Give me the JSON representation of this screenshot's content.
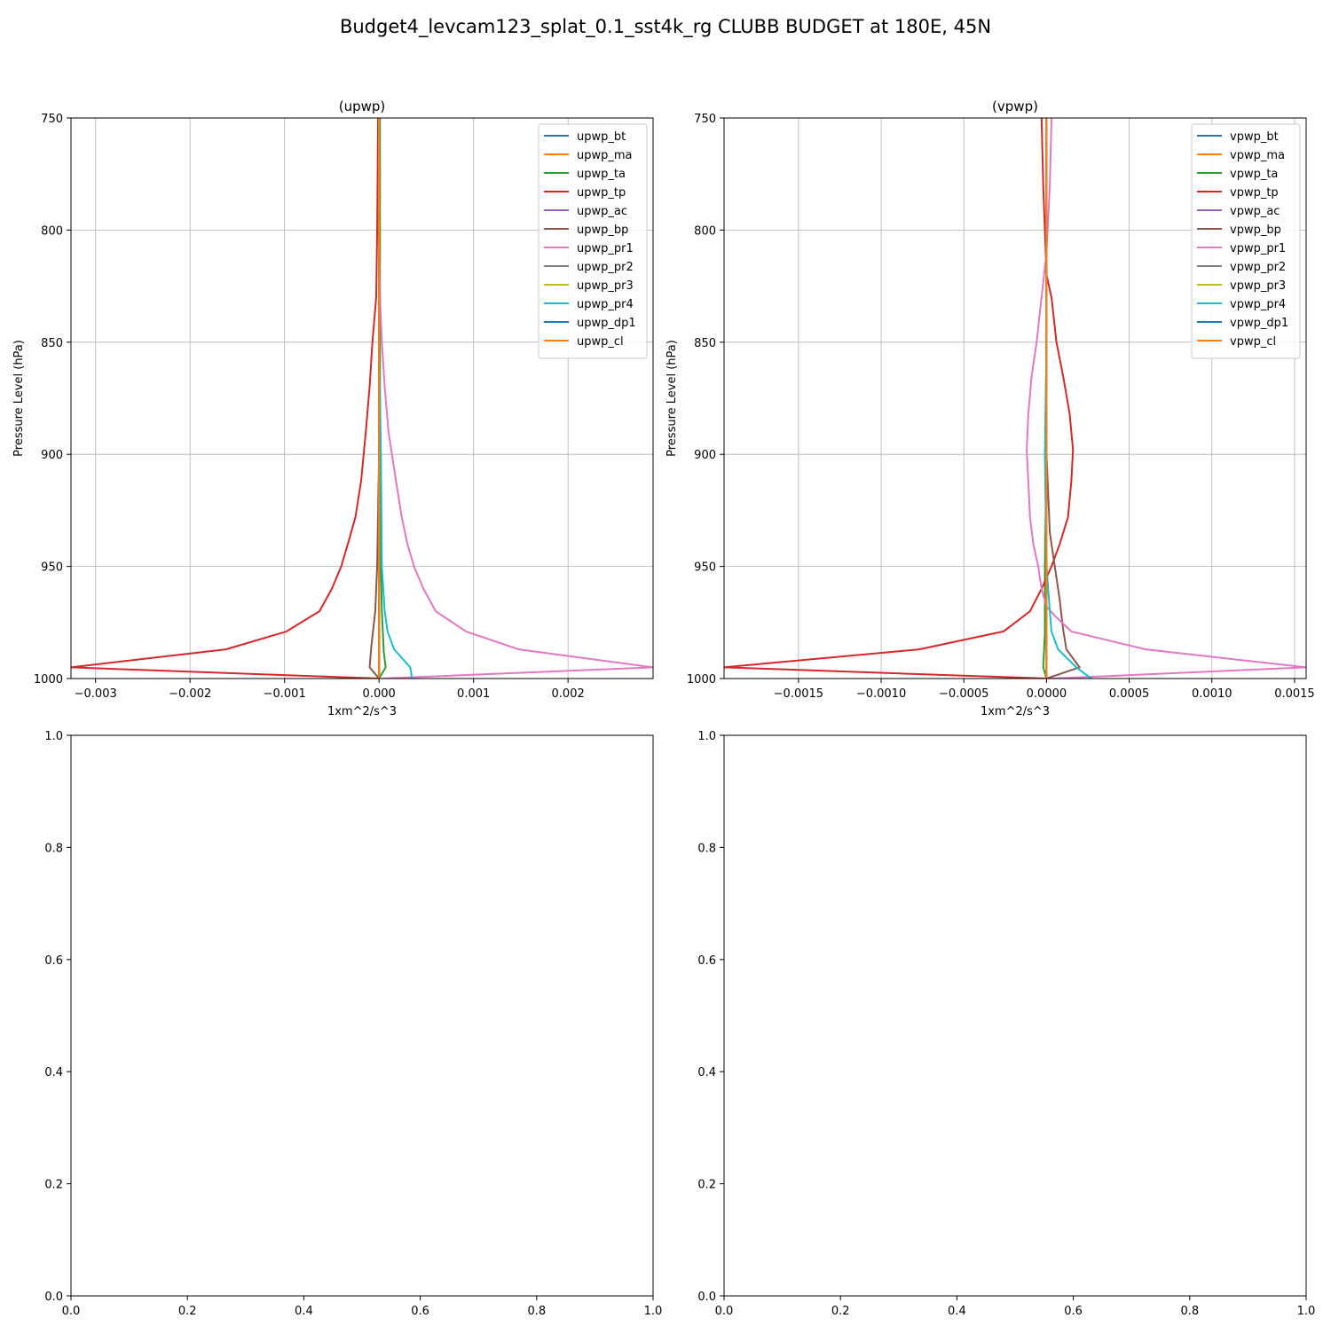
{
  "figure": {
    "suptitle": "Budget4_levcam123_splat_0.1_sst4k_rg CLUBB BUDGET at 180E, 45N"
  },
  "chart_data": [
    {
      "type": "line",
      "orientation": "vertical-profile",
      "title": "(upwp)",
      "xlabel": "1xm^2/s^3",
      "ylabel": "Pressure Level (hPa)",
      "xlim": [
        -0.00326,
        0.0029
      ],
      "ylim": [
        1000,
        750
      ],
      "y_inverted": true,
      "xticks": [
        {
          "value": -0.003,
          "label": "−0.003"
        },
        {
          "value": -0.002,
          "label": "−0.002"
        },
        {
          "value": -0.001,
          "label": "−0.001"
        },
        {
          "value": 0.0,
          "label": "0.000"
        },
        {
          "value": 0.001,
          "label": "0.001"
        },
        {
          "value": 0.002,
          "label": "0.002"
        }
      ],
      "yticks": [
        {
          "value": 750,
          "label": "750"
        },
        {
          "value": 800,
          "label": "800"
        },
        {
          "value": 850,
          "label": "850"
        },
        {
          "value": 900,
          "label": "900"
        },
        {
          "value": 950,
          "label": "950"
        },
        {
          "value": 1000,
          "label": "1000"
        }
      ],
      "grid": true,
      "legend_position": "top-right",
      "series": [
        {
          "name": "upwp_bt",
          "color": "#1f77b4",
          "points": [
            [
              0.0,
              750
            ],
            [
              0.0,
              1000
            ]
          ]
        },
        {
          "name": "upwp_ma",
          "color": "#ff7f0e",
          "points": [
            [
              0.0,
              750
            ],
            [
              0.0,
              1000
            ]
          ]
        },
        {
          "name": "upwp_ta",
          "color": "#2ca02c",
          "points": [
            [
              1e-05,
              750
            ],
            [
              1e-05,
              900
            ],
            [
              2e-05,
              950
            ],
            [
              3e-05,
              970
            ],
            [
              5e-05,
              988
            ],
            [
              7e-05,
              995
            ],
            [
              0.0,
              1000
            ]
          ]
        },
        {
          "name": "upwp_tp",
          "color": "#d62728",
          "points": [
            [
              -1e-05,
              750
            ],
            [
              -2e-05,
              800
            ],
            [
              -3e-05,
              830
            ],
            [
              -7e-05,
              850
            ],
            [
              -0.0001,
              870
            ],
            [
              -0.00014,
              890
            ],
            [
              -0.00019,
              912
            ],
            [
              -0.00025,
              928
            ],
            [
              -0.00033,
              940
            ],
            [
              -0.0004,
              950
            ],
            [
              -0.0005,
              960
            ],
            [
              -0.00063,
              970
            ],
            [
              -0.00098,
              979
            ],
            [
              -0.00162,
              987
            ],
            [
              -0.00326,
              995
            ],
            [
              0.0,
              1000
            ]
          ]
        },
        {
          "name": "upwp_ac",
          "color": "#9467bd",
          "points": [
            [
              0.0,
              750
            ],
            [
              0.0,
              1000
            ]
          ]
        },
        {
          "name": "upwp_bp",
          "color": "#8c564b",
          "points": [
            [
              0.0,
              750
            ],
            [
              0.0,
              900
            ],
            [
              -2e-05,
              950
            ],
            [
              -4e-05,
              970
            ],
            [
              -8e-05,
              985
            ],
            [
              -0.0001,
              995
            ],
            [
              0.0,
              1000
            ]
          ]
        },
        {
          "name": "upwp_pr1",
          "color": "#e377c2",
          "points": [
            [
              0.0,
              750
            ],
            [
              0.0,
              800
            ],
            [
              1e-05,
              830
            ],
            [
              3e-05,
              850
            ],
            [
              6e-05,
              870
            ],
            [
              0.0001,
              890
            ],
            [
              0.00018,
              912
            ],
            [
              0.00024,
              928
            ],
            [
              0.0003,
              940
            ],
            [
              0.00037,
              950
            ],
            [
              0.00047,
              960
            ],
            [
              0.0006,
              970
            ],
            [
              0.00092,
              979
            ],
            [
              0.00148,
              987
            ],
            [
              0.0029,
              995
            ],
            [
              3e-05,
              1000
            ]
          ]
        },
        {
          "name": "upwp_pr2",
          "color": "#7f7f7f",
          "points": [
            [
              0.0,
              750
            ],
            [
              0.0,
              1000
            ]
          ]
        },
        {
          "name": "upwp_pr3",
          "color": "#bcbd22",
          "points": [
            [
              0.0,
              750
            ],
            [
              0.0,
              1000
            ]
          ]
        },
        {
          "name": "upwp_pr4",
          "color": "#17becf",
          "points": [
            [
              0.0,
              750
            ],
            [
              0.0,
              850
            ],
            [
              2e-05,
              900
            ],
            [
              3e-05,
              950
            ],
            [
              6e-05,
              970
            ],
            [
              9e-05,
              979
            ],
            [
              0.00016,
              987
            ],
            [
              0.00033,
              995
            ],
            [
              0.00035,
              1000
            ]
          ]
        },
        {
          "name": "upwp_dp1",
          "color": "#1f77b4",
          "points": [
            [
              0.0,
              750
            ],
            [
              0.0,
              1000
            ]
          ]
        },
        {
          "name": "upwp_cl",
          "color": "#ff7f0e",
          "points": [
            [
              0.0,
              750
            ],
            [
              0.0,
              1000
            ]
          ]
        }
      ]
    },
    {
      "type": "line",
      "orientation": "vertical-profile",
      "title": "(vpwp)",
      "xlabel": "1xm^2/s^3",
      "ylabel": "Pressure Level (hPa)",
      "xlim": [
        -0.00195,
        0.00157
      ],
      "ylim": [
        1000,
        750
      ],
      "y_inverted": true,
      "xticks": [
        {
          "value": -0.0015,
          "label": "−0.0015"
        },
        {
          "value": -0.001,
          "label": "−0.0010"
        },
        {
          "value": -0.0005,
          "label": "−0.0005"
        },
        {
          "value": 0.0,
          "label": "0.0000"
        },
        {
          "value": 0.0005,
          "label": "0.0005"
        },
        {
          "value": 0.001,
          "label": "0.0010"
        },
        {
          "value": 0.0015,
          "label": "0.0015"
        }
      ],
      "yticks": [
        {
          "value": 750,
          "label": "750"
        },
        {
          "value": 800,
          "label": "800"
        },
        {
          "value": 850,
          "label": "850"
        },
        {
          "value": 900,
          "label": "900"
        },
        {
          "value": 950,
          "label": "950"
        },
        {
          "value": 1000,
          "label": "1000"
        }
      ],
      "grid": true,
      "legend_position": "top-right",
      "series": [
        {
          "name": "vpwp_bt",
          "color": "#1f77b4",
          "points": [
            [
              0.0,
              750
            ],
            [
              0.0,
              1000
            ]
          ]
        },
        {
          "name": "vpwp_ma",
          "color": "#ff7f0e",
          "points": [
            [
              0.0,
              750
            ],
            [
              0.0,
              1000
            ]
          ]
        },
        {
          "name": "vpwp_ta",
          "color": "#2ca02c",
          "points": [
            [
              0.0,
              750
            ],
            [
              0.0,
              900
            ],
            [
              -1e-05,
              950
            ],
            [
              -1e-05,
              980
            ],
            [
              -2e-05,
              995
            ],
            [
              0.0,
              1000
            ]
          ]
        },
        {
          "name": "vpwp_tp",
          "color": "#d62728",
          "points": [
            [
              -3e-05,
              750
            ],
            [
              -2e-05,
              780
            ],
            [
              -1e-05,
              800
            ],
            [
              0.0,
              820
            ],
            [
              3e-05,
              830
            ],
            [
              6e-05,
              850
            ],
            [
              0.0001,
              865
            ],
            [
              0.00014,
              882
            ],
            [
              0.00016,
              898
            ],
            [
              0.00015,
              912
            ],
            [
              0.00013,
              928
            ],
            [
              8e-05,
              940
            ],
            [
              3e-05,
              950
            ],
            [
              -3e-05,
              960
            ],
            [
              -0.0001,
              970
            ],
            [
              -0.00026,
              979
            ],
            [
              -0.00077,
              987
            ],
            [
              -0.00195,
              995
            ],
            [
              0.0,
              1000
            ]
          ]
        },
        {
          "name": "vpwp_ac",
          "color": "#9467bd",
          "points": [
            [
              0.0,
              750
            ],
            [
              0.0,
              1000
            ]
          ]
        },
        {
          "name": "vpwp_bp",
          "color": "#8c564b",
          "points": [
            [
              0.0,
              750
            ],
            [
              0.0,
              900
            ],
            [
              2e-05,
              935
            ],
            [
              5e-05,
              950
            ],
            [
              8e-05,
              965
            ],
            [
              0.0001,
              978
            ],
            [
              0.00012,
              987
            ],
            [
              0.0002,
              995
            ],
            [
              0.0,
              1000
            ]
          ]
        },
        {
          "name": "vpwp_pr1",
          "color": "#e377c2",
          "points": [
            [
              3e-05,
              750
            ],
            [
              2e-05,
              780
            ],
            [
              0.0,
              810
            ],
            [
              -3e-05,
              830
            ],
            [
              -6e-05,
              850
            ],
            [
              -9e-05,
              865
            ],
            [
              -0.00011,
              882
            ],
            [
              -0.00012,
              898
            ],
            [
              -0.00011,
              912
            ],
            [
              -0.0001,
              928
            ],
            [
              -8e-05,
              940
            ],
            [
              -5e-05,
              950
            ],
            [
              -3e-05,
              960
            ],
            [
              0.0,
              968
            ],
            [
              5e-05,
              972
            ],
            [
              0.00015,
              979
            ],
            [
              0.0006,
              987
            ],
            [
              0.00157,
              995
            ],
            [
              3e-05,
              1000
            ]
          ]
        },
        {
          "name": "vpwp_pr2",
          "color": "#7f7f7f",
          "points": [
            [
              0.0,
              750
            ],
            [
              0.0,
              1000
            ]
          ]
        },
        {
          "name": "vpwp_pr3",
          "color": "#bcbd22",
          "points": [
            [
              0.0,
              750
            ],
            [
              0.0,
              1000
            ]
          ]
        },
        {
          "name": "vpwp_pr4",
          "color": "#17becf",
          "points": [
            [
              0.0,
              750
            ],
            [
              0.0,
              850
            ],
            [
              -1e-05,
              900
            ],
            [
              0.0,
              950
            ],
            [
              2e-05,
              970
            ],
            [
              3e-05,
              979
            ],
            [
              7e-05,
              987
            ],
            [
              0.00018,
              995
            ],
            [
              0.00027,
              1000
            ]
          ]
        },
        {
          "name": "vpwp_dp1",
          "color": "#1f77b4",
          "points": [
            [
              0.0,
              750
            ],
            [
              0.0,
              1000
            ]
          ]
        },
        {
          "name": "vpwp_cl",
          "color": "#ff7f0e",
          "points": [
            [
              0.0,
              750
            ],
            [
              0.0,
              1000
            ]
          ]
        }
      ]
    },
    {
      "type": "line",
      "title": "",
      "empty": true,
      "xlim": [
        0,
        1
      ],
      "ylim": [
        0,
        1
      ],
      "xticks": [
        {
          "value": 0.0,
          "label": "0.0"
        },
        {
          "value": 0.2,
          "label": "0.2"
        },
        {
          "value": 0.4,
          "label": "0.4"
        },
        {
          "value": 0.6,
          "label": "0.6"
        },
        {
          "value": 0.8,
          "label": "0.8"
        },
        {
          "value": 1.0,
          "label": "1.0"
        }
      ],
      "yticks": [
        {
          "value": 0.0,
          "label": "0.0"
        },
        {
          "value": 0.2,
          "label": "0.2"
        },
        {
          "value": 0.4,
          "label": "0.4"
        },
        {
          "value": 0.6,
          "label": "0.6"
        },
        {
          "value": 0.8,
          "label": "0.8"
        },
        {
          "value": 1.0,
          "label": "1.0"
        }
      ],
      "grid": false,
      "series": []
    },
    {
      "type": "line",
      "title": "",
      "empty": true,
      "xlim": [
        0,
        1
      ],
      "ylim": [
        0,
        1
      ],
      "xticks": [
        {
          "value": 0.0,
          "label": "0.0"
        },
        {
          "value": 0.2,
          "label": "0.2"
        },
        {
          "value": 0.4,
          "label": "0.4"
        },
        {
          "value": 0.6,
          "label": "0.6"
        },
        {
          "value": 0.8,
          "label": "0.8"
        },
        {
          "value": 1.0,
          "label": "1.0"
        }
      ],
      "yticks": [
        {
          "value": 0.0,
          "label": "0.0"
        },
        {
          "value": 0.2,
          "label": "0.2"
        },
        {
          "value": 0.4,
          "label": "0.4"
        },
        {
          "value": 0.6,
          "label": "0.6"
        },
        {
          "value": 0.8,
          "label": "0.8"
        },
        {
          "value": 1.0,
          "label": "1.0"
        }
      ],
      "grid": false,
      "series": []
    }
  ]
}
